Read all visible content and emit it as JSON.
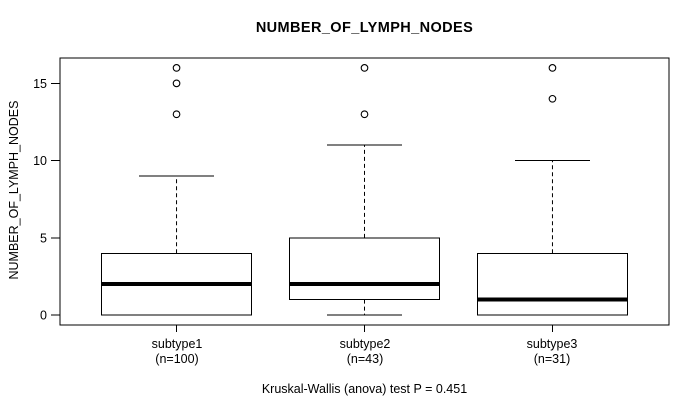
{
  "chart_data": {
    "type": "boxplot",
    "title": "NUMBER_OF_LYMPH_NODES",
    "ylabel": "NUMBER_OF_LYMPH_NODES",
    "xlabel": "",
    "caption": "Kruskal-Wallis (anova) test P = 0.451",
    "y_ticks": [
      0,
      5,
      10,
      15
    ],
    "ylim": [
      -0.64,
      16.64
    ],
    "grid": false,
    "legend": "none",
    "groups": [
      {
        "label": "subtype1",
        "n_label": "(n=100)",
        "whisker_low": 0,
        "q1": 0,
        "median": 2,
        "q3": 4,
        "whisker_high": 9,
        "outliers": [
          13,
          15,
          16
        ]
      },
      {
        "label": "subtype2",
        "n_label": "(n=43)",
        "whisker_low": 0,
        "q1": 1,
        "median": 2,
        "q3": 5,
        "whisker_high": 11,
        "outliers": [
          13,
          16
        ]
      },
      {
        "label": "subtype3",
        "n_label": "(n=31)",
        "whisker_low": 0,
        "q1": 0,
        "median": 1,
        "q3": 4,
        "whisker_high": 10,
        "outliers": [
          14,
          16
        ]
      }
    ]
  },
  "colors": {
    "line": "#000000",
    "background": "#ffffff",
    "box_fill": "#ffffff"
  }
}
